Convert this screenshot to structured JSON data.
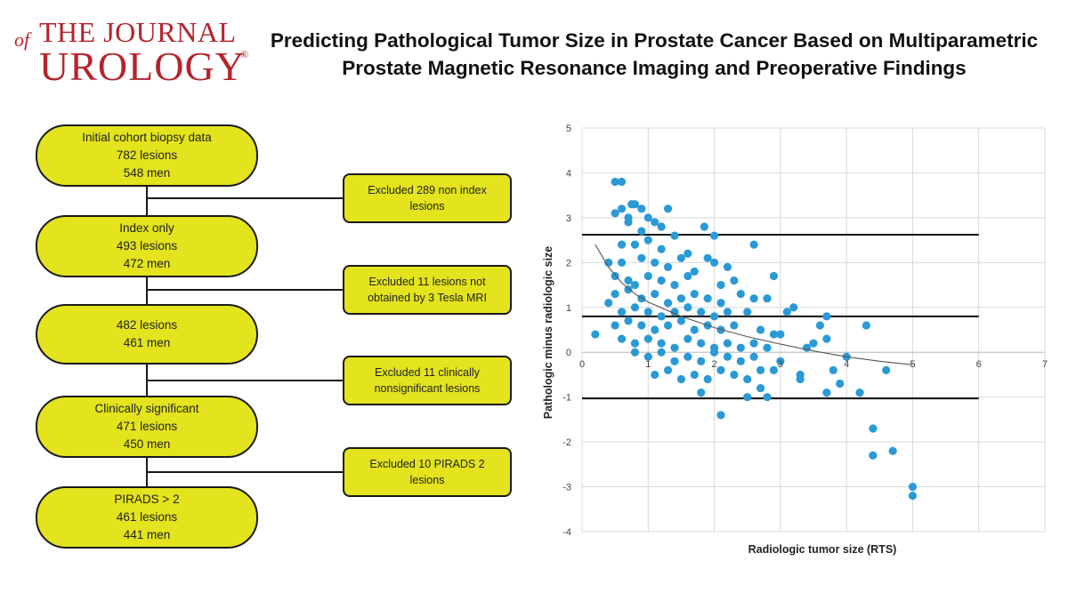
{
  "journal": {
    "of": "of",
    "line1": "THE JOURNAL",
    "line2": "UROLOGY",
    "registered": "®"
  },
  "title": {
    "line1": "Predicting Pathological Tumor Size in Prostate Cancer Based on Multiparametric",
    "line2": "Prostate Magnetic Resonance Imaging and Preoperative Findings"
  },
  "flowchart": {
    "steps": [
      {
        "lines": [
          "Initial cohort biopsy data",
          "782 lesions",
          "548 men"
        ]
      },
      {
        "lines": [
          "Index only",
          "493 lesions",
          "472 men"
        ]
      },
      {
        "lines": [
          "482 lesions",
          "461 men"
        ]
      },
      {
        "lines": [
          "Clinically significant",
          "471 lesions",
          "450 men"
        ]
      },
      {
        "lines": [
          "PIRADS > 2",
          "461 lesions",
          "441 men"
        ]
      }
    ],
    "exclusions": [
      {
        "lines": [
          "Excluded 289 non index",
          "lesions"
        ]
      },
      {
        "lines": [
          "Excluded 11 lesions not",
          "obtained by 3 Tesla MRI"
        ]
      },
      {
        "lines": [
          "Excluded 11 clinically",
          "nonsignificant lesions"
        ]
      },
      {
        "lines": [
          "Excluded 10 PIRADS 2",
          "lesions"
        ]
      }
    ]
  },
  "colors": {
    "box_fill": "#e3e31e",
    "journal_red": "#b5242d",
    "point": "#2a9ad6"
  },
  "chart_data": {
    "type": "scatter",
    "xlabel": "Radiologic tumor size (RTS)",
    "ylabel": "Pathologic  minus radiologic size",
    "xlim": [
      0,
      7
    ],
    "ylim": [
      -4,
      5
    ],
    "xticks": [
      0,
      1,
      2,
      3,
      4,
      5,
      6,
      7
    ],
    "yticks": [
      -4,
      -3,
      -2,
      -1,
      0,
      1,
      2,
      3,
      4,
      5
    ],
    "grid": true,
    "reference_lines": [
      2.62,
      0.8,
      -1.03
    ],
    "trendline": [
      [
        0.2,
        2.4
      ],
      [
        0.4,
        1.9
      ],
      [
        0.6,
        1.55
      ],
      [
        0.8,
        1.3
      ],
      [
        1.0,
        1.12
      ],
      [
        1.5,
        0.8
      ],
      [
        2.0,
        0.55
      ],
      [
        2.5,
        0.35
      ],
      [
        3.0,
        0.18
      ],
      [
        3.5,
        0.03
      ],
      [
        4.0,
        -0.1
      ],
      [
        4.5,
        -0.2
      ],
      [
        5.0,
        -0.28
      ]
    ],
    "series": [
      {
        "points": [
          [
            0.5,
            3.8
          ],
          [
            0.6,
            3.8
          ],
          [
            0.5,
            3.1
          ],
          [
            0.6,
            3.2
          ],
          [
            0.7,
            3.0
          ],
          [
            0.8,
            3.3
          ],
          [
            0.75,
            3.3
          ],
          [
            0.9,
            3.2
          ],
          [
            1.0,
            3.0
          ],
          [
            1.1,
            2.9
          ],
          [
            1.2,
            2.8
          ],
          [
            1.3,
            3.2
          ],
          [
            0.7,
            2.9
          ],
          [
            0.9,
            2.7
          ],
          [
            1.4,
            2.6
          ],
          [
            1.85,
            2.8
          ],
          [
            2.0,
            2.6
          ],
          [
            2.6,
            2.4
          ],
          [
            0.6,
            2.4
          ],
          [
            0.8,
            2.4
          ],
          [
            1.0,
            2.5
          ],
          [
            1.2,
            2.3
          ],
          [
            1.6,
            2.2
          ],
          [
            0.4,
            2.0
          ],
          [
            0.6,
            2.0
          ],
          [
            0.9,
            2.1
          ],
          [
            1.1,
            2.0
          ],
          [
            1.3,
            1.9
          ],
          [
            1.5,
            2.1
          ],
          [
            1.7,
            1.8
          ],
          [
            1.9,
            2.1
          ],
          [
            2.0,
            2.0
          ],
          [
            2.2,
            1.9
          ],
          [
            0.5,
            1.7
          ],
          [
            0.7,
            1.6
          ],
          [
            0.8,
            1.5
          ],
          [
            1.0,
            1.7
          ],
          [
            1.2,
            1.6
          ],
          [
            1.4,
            1.5
          ],
          [
            1.6,
            1.7
          ],
          [
            2.1,
            1.5
          ],
          [
            2.3,
            1.6
          ],
          [
            2.9,
            1.7
          ],
          [
            0.5,
            1.3
          ],
          [
            0.7,
            1.4
          ],
          [
            0.9,
            1.2
          ],
          [
            1.1,
            1.3
          ],
          [
            1.3,
            1.1
          ],
          [
            1.5,
            1.2
          ],
          [
            1.7,
            1.3
          ],
          [
            1.9,
            1.2
          ],
          [
            2.1,
            1.1
          ],
          [
            2.4,
            1.3
          ],
          [
            2.6,
            1.2
          ],
          [
            2.8,
            1.2
          ],
          [
            0.4,
            1.1
          ],
          [
            0.6,
            0.9
          ],
          [
            0.8,
            1.0
          ],
          [
            1.0,
            0.9
          ],
          [
            1.2,
            0.8
          ],
          [
            1.4,
            0.9
          ],
          [
            1.6,
            1.0
          ],
          [
            1.8,
            0.9
          ],
          [
            2.0,
            0.8
          ],
          [
            2.2,
            0.9
          ],
          [
            2.5,
            0.9
          ],
          [
            3.1,
            0.9
          ],
          [
            3.2,
            1.0
          ],
          [
            3.7,
            0.8
          ],
          [
            0.2,
            0.4
          ],
          [
            0.5,
            0.6
          ],
          [
            0.7,
            0.7
          ],
          [
            0.9,
            0.6
          ],
          [
            1.1,
            0.5
          ],
          [
            1.3,
            0.6
          ],
          [
            1.5,
            0.7
          ],
          [
            1.7,
            0.5
          ],
          [
            1.9,
            0.6
          ],
          [
            2.1,
            0.5
          ],
          [
            2.3,
            0.6
          ],
          [
            2.7,
            0.5
          ],
          [
            2.9,
            0.4
          ],
          [
            3.0,
            0.4
          ],
          [
            3.6,
            0.6
          ],
          [
            4.3,
            0.6
          ],
          [
            0.6,
            0.3
          ],
          [
            0.8,
            0.2
          ],
          [
            1.0,
            0.3
          ],
          [
            1.2,
            0.2
          ],
          [
            1.4,
            0.1
          ],
          [
            1.6,
            0.3
          ],
          [
            1.8,
            0.2
          ],
          [
            2.0,
            0.1
          ],
          [
            2.2,
            0.2
          ],
          [
            2.4,
            0.1
          ],
          [
            2.6,
            0.2
          ],
          [
            2.8,
            0.1
          ],
          [
            3.5,
            0.2
          ],
          [
            3.7,
            0.3
          ],
          [
            3.4,
            0.1
          ],
          [
            0.8,
            0.0
          ],
          [
            1.0,
            -0.1
          ],
          [
            1.2,
            0.0
          ],
          [
            1.4,
            -0.2
          ],
          [
            1.6,
            -0.1
          ],
          [
            1.8,
            -0.2
          ],
          [
            2.0,
            0.0
          ],
          [
            2.2,
            -0.1
          ],
          [
            2.4,
            -0.2
          ],
          [
            2.6,
            -0.1
          ],
          [
            3.0,
            -0.2
          ],
          [
            4.0,
            -0.1
          ],
          [
            1.1,
            -0.5
          ],
          [
            1.3,
            -0.4
          ],
          [
            1.5,
            -0.6
          ],
          [
            1.7,
            -0.5
          ],
          [
            1.9,
            -0.6
          ],
          [
            2.1,
            -0.4
          ],
          [
            2.3,
            -0.5
          ],
          [
            2.5,
            -0.6
          ],
          [
            2.7,
            -0.4
          ],
          [
            2.9,
            -0.4
          ],
          [
            3.3,
            -0.5
          ],
          [
            3.8,
            -0.4
          ],
          [
            4.6,
            -0.4
          ],
          [
            1.8,
            -0.9
          ],
          [
            2.5,
            -1.0
          ],
          [
            2.7,
            -0.8
          ],
          [
            2.8,
            -1.0
          ],
          [
            3.7,
            -0.9
          ],
          [
            3.9,
            -0.7
          ],
          [
            4.2,
            -0.9
          ],
          [
            3.3,
            -0.6
          ],
          [
            2.1,
            -1.4
          ],
          [
            4.4,
            -1.7
          ],
          [
            4.4,
            -2.3
          ],
          [
            4.7,
            -2.2
          ],
          [
            5.0,
            -3.0
          ],
          [
            5.0,
            -3.2
          ]
        ]
      }
    ]
  }
}
